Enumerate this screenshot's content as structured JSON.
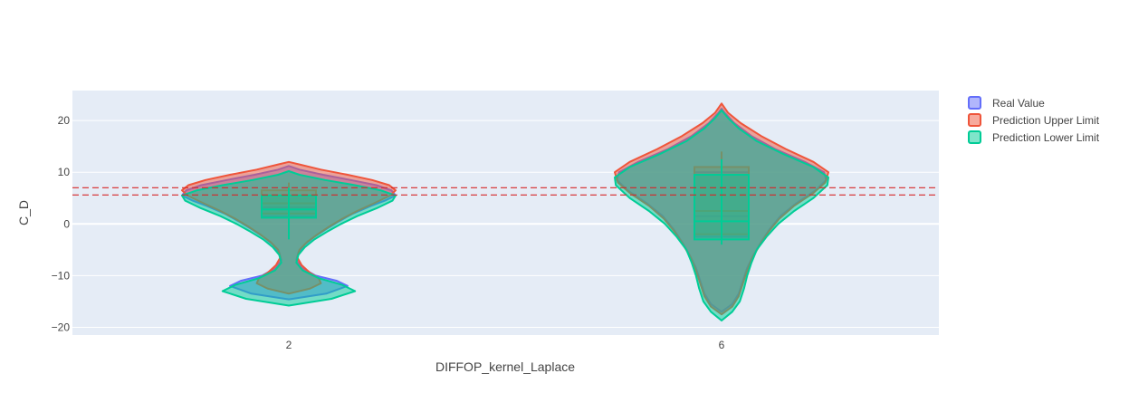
{
  "chart_data": {
    "type": "violin",
    "xlabel": "DIFFOP_kernel_Laplace",
    "ylabel": "C_D",
    "categories": [
      "2",
      "6"
    ],
    "y_ticks": [
      -20,
      -10,
      0,
      10,
      20
    ],
    "ylim": [
      -21.5,
      25.8
    ],
    "grid": true,
    "legend_position": "top-right",
    "reference_lines": [
      {
        "y": 7.0,
        "color": "#d62728",
        "style": "dashed"
      },
      {
        "y": 5.6,
        "color": "#d62728",
        "style": "dashed"
      }
    ],
    "series": [
      {
        "name": "Real Value",
        "color": "#636efa",
        "groups": [
          {
            "category": "2",
            "profile": [
              [
                -14.6,
                0
              ],
              [
                -13.5,
                0.35
              ],
              [
                -12.0,
                0.55
              ],
              [
                -11.0,
                0.45
              ],
              [
                -10.0,
                0.25
              ],
              [
                -8.5,
                0.12
              ],
              [
                -7.0,
                0.07
              ],
              [
                -5.5,
                0.09
              ],
              [
                -4.0,
                0.15
              ],
              [
                -2.5,
                0.24
              ],
              [
                -1.0,
                0.35
              ],
              [
                0.5,
                0.47
              ],
              [
                2.0,
                0.6
              ],
              [
                3.5,
                0.77
              ],
              [
                4.5,
                0.9
              ],
              [
                5.5,
                1.0
              ],
              [
                6.5,
                0.96
              ],
              [
                7.5,
                0.82
              ],
              [
                8.5,
                0.58
              ],
              [
                9.5,
                0.32
              ],
              [
                10.5,
                0.1
              ],
              [
                11.2,
                0
              ]
            ],
            "box": {
              "min": -2.5,
              "q1": 1.5,
              "median": 3.2,
              "q3": 5.5,
              "max": 7.0
            }
          },
          {
            "category": "6",
            "profile": [
              [
                -17.0,
                0
              ],
              [
                -15.5,
                0.1
              ],
              [
                -13.5,
                0.16
              ],
              [
                -11.0,
                0.2
              ],
              [
                -8.5,
                0.24
              ],
              [
                -6.0,
                0.3
              ],
              [
                -3.5,
                0.37
              ],
              [
                -1.0,
                0.45
              ],
              [
                1.5,
                0.55
              ],
              [
                4.0,
                0.7
              ],
              [
                6.5,
                0.88
              ],
              [
                8.5,
                0.98
              ],
              [
                10.0,
                0.96
              ],
              [
                12.0,
                0.78
              ],
              [
                14.5,
                0.5
              ],
              [
                17.0,
                0.28
              ],
              [
                19.5,
                0.12
              ],
              [
                21.5,
                0.03
              ],
              [
                22.3,
                0
              ]
            ],
            "box": {
              "min": -4.0,
              "q1": -2.5,
              "median": 1.5,
              "q3": 10.0,
              "max": 13.0
            }
          }
        ]
      },
      {
        "name": "Prediction Upper Limit",
        "color": "#ef553b",
        "groups": [
          {
            "category": "2",
            "profile": [
              [
                -13.5,
                0
              ],
              [
                -12.5,
                0.2
              ],
              [
                -11.5,
                0.3
              ],
              [
                -10.5,
                0.28
              ],
              [
                -9.5,
                0.2
              ],
              [
                -8.0,
                0.12
              ],
              [
                -6.5,
                0.08
              ],
              [
                -5.0,
                0.1
              ],
              [
                -3.5,
                0.17
              ],
              [
                -2.0,
                0.27
              ],
              [
                -0.5,
                0.38
              ],
              [
                1.0,
                0.5
              ],
              [
                2.5,
                0.64
              ],
              [
                4.0,
                0.8
              ],
              [
                5.5,
                0.95
              ],
              [
                6.5,
                1.0
              ],
              [
                7.5,
                0.94
              ],
              [
                8.5,
                0.78
              ],
              [
                9.5,
                0.55
              ],
              [
                10.5,
                0.3
              ],
              [
                11.5,
                0.1
              ],
              [
                12.0,
                0
              ]
            ],
            "box": {
              "min": -2.0,
              "q1": 2.0,
              "median": 4.0,
              "q3": 6.5,
              "max": 8.0
            }
          },
          {
            "category": "6",
            "profile": [
              [
                -17.5,
                0
              ],
              [
                -16.0,
                0.1
              ],
              [
                -14.0,
                0.16
              ],
              [
                -11.5,
                0.2
              ],
              [
                -9.0,
                0.24
              ],
              [
                -6.5,
                0.29
              ],
              [
                -4.0,
                0.36
              ],
              [
                -1.5,
                0.44
              ],
              [
                1.0,
                0.54
              ],
              [
                3.5,
                0.68
              ],
              [
                6.0,
                0.86
              ],
              [
                8.0,
                0.97
              ],
              [
                10.0,
                1.0
              ],
              [
                12.0,
                0.86
              ],
              [
                14.5,
                0.6
              ],
              [
                17.0,
                0.37
              ],
              [
                19.5,
                0.18
              ],
              [
                21.5,
                0.06
              ],
              [
                23.3,
                0
              ]
            ],
            "box": {
              "min": -3.5,
              "q1": -2.0,
              "median": 2.5,
              "q3": 11.0,
              "max": 14.0
            }
          }
        ]
      },
      {
        "name": "Prediction Lower Limit",
        "color": "#00cc96",
        "groups": [
          {
            "category": "2",
            "profile": [
              [
                -15.8,
                0
              ],
              [
                -14.5,
                0.4
              ],
              [
                -13.0,
                0.62
              ],
              [
                -11.8,
                0.5
              ],
              [
                -10.5,
                0.28
              ],
              [
                -9.0,
                0.13
              ],
              [
                -7.5,
                0.07
              ],
              [
                -6.0,
                0.09
              ],
              [
                -4.5,
                0.15
              ],
              [
                -3.0,
                0.24
              ],
              [
                -1.5,
                0.36
              ],
              [
                0.0,
                0.49
              ],
              [
                1.5,
                0.64
              ],
              [
                3.0,
                0.82
              ],
              [
                4.5,
                0.97
              ],
              [
                5.5,
                1.0
              ],
              [
                6.5,
                0.86
              ],
              [
                7.5,
                0.62
              ],
              [
                8.5,
                0.34
              ],
              [
                9.5,
                0.1
              ],
              [
                10.2,
                0
              ]
            ],
            "box": {
              "min": -3.0,
              "q1": 1.2,
              "median": 2.8,
              "q3": 5.5,
              "max": 7.0
            }
          },
          {
            "category": "6",
            "profile": [
              [
                -18.7,
                0
              ],
              [
                -17.0,
                0.1
              ],
              [
                -15.0,
                0.17
              ],
              [
                -12.5,
                0.21
              ],
              [
                -10.0,
                0.24
              ],
              [
                -7.5,
                0.28
              ],
              [
                -5.0,
                0.33
              ],
              [
                -2.5,
                0.42
              ],
              [
                0.0,
                0.53
              ],
              [
                2.5,
                0.68
              ],
              [
                5.0,
                0.86
              ],
              [
                7.5,
                0.99
              ],
              [
                9.0,
                1.0
              ],
              [
                11.0,
                0.86
              ],
              [
                13.5,
                0.58
              ],
              [
                16.0,
                0.33
              ],
              [
                18.5,
                0.16
              ],
              [
                20.5,
                0.06
              ],
              [
                22.0,
                0
              ]
            ],
            "box": {
              "min": -4.0,
              "q1": -3.0,
              "median": 0.5,
              "q3": 9.5,
              "max": 12.5
            }
          }
        ]
      }
    ]
  }
}
